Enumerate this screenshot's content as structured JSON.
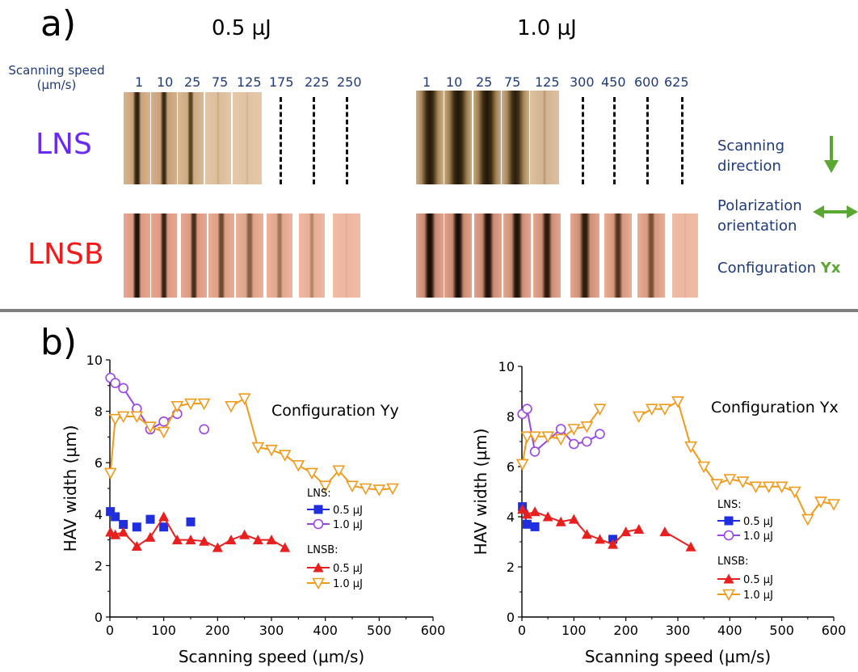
{
  "panel_a": {
    "letter": "a)",
    "energy_left": "0.5 µJ",
    "energy_right": "1.0 µJ",
    "speed_label_line1": "Scanning speed",
    "speed_label_line2": "(µm/s)",
    "speeds_left": [
      "1",
      "10",
      "25",
      "75",
      "125",
      "175",
      "225",
      "250"
    ],
    "speeds_right": [
      "1",
      "10",
      "25",
      "75",
      "125",
      "300",
      "450",
      "600",
      "625"
    ],
    "sample_lns": "LNS",
    "sample_lnsb": "LNSB",
    "lns_color": "#6a2bf0",
    "lnsb_color": "#ef1c1c",
    "scanning_direction_1": "Scanning",
    "scanning_direction_2": "direction",
    "polarization_1": "Polarization",
    "polarization_2": "orientation",
    "configuration_prefix": "Configuration ",
    "configuration_suffix": "Yx",
    "arrow_color": "#5aa832"
  },
  "panel_b": {
    "letter": "b)"
  },
  "chart_data": [
    {
      "type": "line",
      "annotation": "Configuration Yy",
      "xlabel": "Scanning speed (µm/s)",
      "ylabel": "HAV width (µm)",
      "xlim": [
        0,
        600
      ],
      "ylim": [
        0,
        10
      ],
      "xticks": [
        0,
        100,
        200,
        300,
        400,
        500,
        600
      ],
      "yticks": [
        0,
        2,
        4,
        6,
        8,
        10
      ],
      "legend_group1": "LNS:",
      "legend_group2": "LNSB:",
      "series": [
        {
          "name": "0.5 µJ",
          "group": "LNS",
          "marker": "square",
          "color": "#1f2fe0",
          "connected": false,
          "x": [
            1,
            10,
            25,
            50,
            75,
            100,
            150
          ],
          "y": [
            4.1,
            3.9,
            3.6,
            3.5,
            3.8,
            3.5,
            3.7
          ]
        },
        {
          "name": "1.0 µJ",
          "group": "LNS",
          "marker": "circle-open",
          "color": "#9b45e6",
          "connected": true,
          "x": [
            1,
            10,
            25,
            50,
            75,
            100,
            125,
            175
          ],
          "y": [
            9.3,
            9.1,
            8.9,
            8.1,
            7.3,
            7.6,
            7.9,
            7.3
          ],
          "break_after": 6
        },
        {
          "name": "0.5 µJ",
          "group": "LNSB",
          "marker": "triangle",
          "color": "#e81f1f",
          "connected": true,
          "x": [
            1,
            10,
            25,
            50,
            75,
            100,
            125,
            150,
            175,
            200,
            225,
            250,
            275,
            300,
            325
          ],
          "y": [
            3.3,
            3.2,
            3.3,
            2.75,
            3.1,
            3.9,
            3.0,
            3.0,
            2.95,
            2.7,
            3.0,
            3.2,
            3.0,
            3.0,
            2.7
          ]
        },
        {
          "name": "1.0 µJ",
          "group": "LNSB",
          "marker": "triangle-open",
          "color": "#f09a1a",
          "connected": true,
          "x": [
            1,
            10,
            25,
            50,
            75,
            100,
            125,
            150,
            175,
            225,
            250,
            275,
            300,
            325,
            350,
            375,
            400,
            425,
            450,
            475,
            500,
            525
          ],
          "y": [
            5.6,
            7.7,
            7.8,
            7.8,
            7.4,
            7.2,
            8.2,
            8.3,
            8.3,
            8.2,
            8.5,
            6.6,
            6.5,
            6.3,
            5.9,
            5.6,
            5.1,
            5.7,
            5.1,
            5.0,
            4.95,
            5.0
          ],
          "break_after": 8
        }
      ]
    },
    {
      "type": "line",
      "annotation": "Configuration Yx",
      "xlabel": "Scanning speed (µm/s)",
      "ylabel": "HAV width (µm)",
      "xlim": [
        0,
        600
      ],
      "ylim": [
        0,
        10
      ],
      "xticks": [
        0,
        100,
        200,
        300,
        400,
        500,
        600
      ],
      "yticks": [
        0,
        2,
        4,
        6,
        8,
        10
      ],
      "legend_group1": "LNS:",
      "legend_group2": "LNSB:",
      "series": [
        {
          "name": "0.5 µJ",
          "group": "LNS",
          "marker": "square",
          "color": "#1f2fe0",
          "connected": true,
          "x": [
            1,
            10,
            25,
            175
          ],
          "y": [
            4.4,
            3.7,
            3.6,
            3.1
          ],
          "break_after": 2
        },
        {
          "name": "1.0 µJ",
          "group": "LNS",
          "marker": "circle-open",
          "color": "#9b45e6",
          "connected": true,
          "x": [
            1,
            10,
            25,
            75,
            100,
            125,
            150
          ],
          "y": [
            8.1,
            8.3,
            6.6,
            7.5,
            6.9,
            7.0,
            7.3
          ]
        },
        {
          "name": "0.5 µJ",
          "group": "LNSB",
          "marker": "triangle",
          "color": "#e81f1f",
          "connected": true,
          "x": [
            1,
            10,
            25,
            50,
            75,
            100,
            125,
            150,
            175,
            200,
            225,
            275,
            325
          ],
          "y": [
            4.3,
            4.1,
            4.2,
            4.0,
            3.8,
            3.9,
            3.3,
            3.1,
            2.9,
            3.4,
            3.5,
            3.4,
            2.8
          ],
          "break_after": 10
        },
        {
          "name": "1.0 µJ",
          "group": "LNSB",
          "marker": "triangle-open",
          "color": "#f09a1a",
          "connected": true,
          "x": [
            1,
            10,
            25,
            50,
            75,
            100,
            125,
            150,
            225,
            250,
            275,
            300,
            325,
            350,
            375,
            400,
            425,
            450,
            475,
            500,
            525,
            550,
            575,
            600
          ],
          "y": [
            6.1,
            7.2,
            7.2,
            7.2,
            7.1,
            7.5,
            7.6,
            8.3,
            8.0,
            8.3,
            8.3,
            8.6,
            6.8,
            6.0,
            5.3,
            5.5,
            5.4,
            5.2,
            5.2,
            5.2,
            5.0,
            3.9,
            4.6,
            4.5
          ],
          "break_after": 7
        }
      ]
    }
  ]
}
